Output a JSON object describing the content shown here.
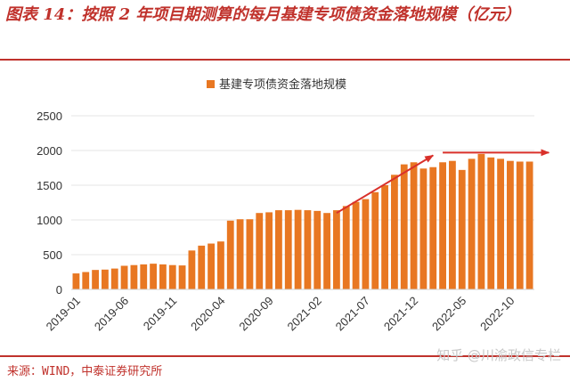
{
  "figure": {
    "title": "图表 14：按照 2 年项目期测算的每月基建专项债资金落地规模（亿元）",
    "source": "来源：WIND，中泰证券研究所",
    "watermark": "知乎 @川渝政信专栏"
  },
  "colors": {
    "bar": "#e87722",
    "accent": "#c0322c",
    "arrow": "#d9302a",
    "axis": "#d0d0d0",
    "grid": "#e6e6e6"
  },
  "chart_data": {
    "type": "bar",
    "legend": "基建专项债资金落地规模",
    "legend_position": "top",
    "grid": true,
    "ylim": [
      0,
      2500
    ],
    "yticks": [
      0,
      500,
      1000,
      1500,
      2000,
      2500
    ],
    "x_tick_labels": [
      "2019-01",
      "2019-06",
      "2019-11",
      "2020-04",
      "2020-09",
      "2021-02",
      "2021-07",
      "2021-12",
      "2022-05",
      "2022-10"
    ],
    "x_tick_every": 5,
    "categories": [
      "2019-01",
      "2019-02",
      "2019-03",
      "2019-04",
      "2019-05",
      "2019-06",
      "2019-07",
      "2019-08",
      "2019-09",
      "2019-10",
      "2019-11",
      "2019-12",
      "2020-01",
      "2020-02",
      "2020-03",
      "2020-04",
      "2020-05",
      "2020-06",
      "2020-07",
      "2020-08",
      "2020-09",
      "2020-10",
      "2020-11",
      "2020-12",
      "2021-01",
      "2021-02",
      "2021-03",
      "2021-04",
      "2021-05",
      "2021-06",
      "2021-07",
      "2021-08",
      "2021-09",
      "2021-10",
      "2021-11",
      "2021-12",
      "2022-01",
      "2022-02",
      "2022-03",
      "2022-04",
      "2022-05",
      "2022-06",
      "2022-07",
      "2022-08",
      "2022-09",
      "2022-10",
      "2022-11",
      "2022-12"
    ],
    "values": [
      230,
      250,
      280,
      285,
      300,
      340,
      350,
      360,
      370,
      360,
      350,
      345,
      560,
      630,
      660,
      690,
      990,
      1010,
      1010,
      1100,
      1110,
      1140,
      1140,
      1145,
      1140,
      1130,
      1100,
      1140,
      1200,
      1260,
      1300,
      1400,
      1500,
      1650,
      1800,
      1830,
      1740,
      1760,
      1830,
      1850,
      1720,
      1880,
      1950,
      1900,
      1880,
      1850,
      1840,
      1840
    ],
    "arrows": [
      {
        "from": [
          27,
          1100
        ],
        "to": [
          37,
          1930
        ]
      },
      {
        "from": [
          38,
          1970
        ],
        "to": [
          49,
          1970
        ]
      }
    ]
  }
}
